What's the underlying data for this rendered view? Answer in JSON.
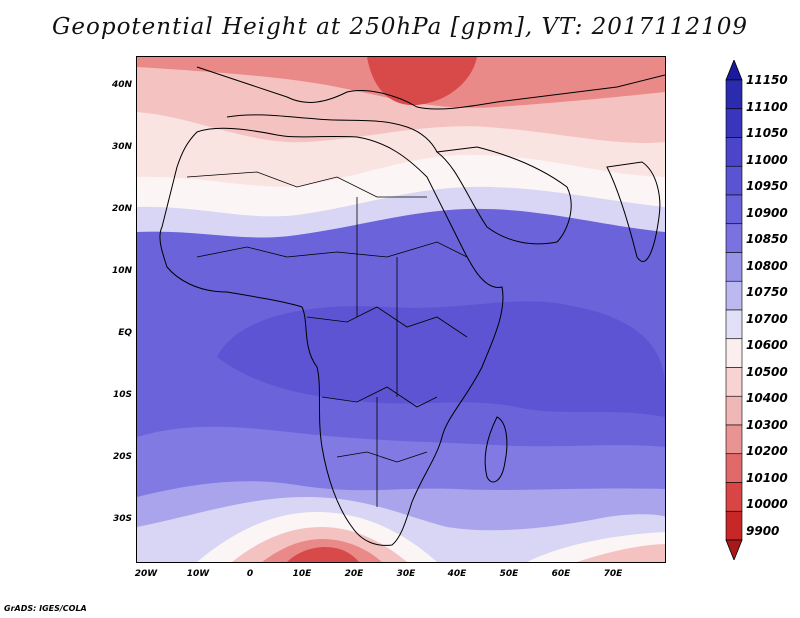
{
  "title": "Geopotential Height at 250hPa [gpm], VT: 2017112109",
  "footer": "GrADS: IGES/COLA",
  "lat_labels": [
    "40N",
    "30N",
    "20N",
    "10N",
    "EQ",
    "10S",
    "20S",
    "30S"
  ],
  "lon_labels": [
    "20W",
    "10W",
    "0",
    "10E",
    "20E",
    "30E",
    "40E",
    "50E",
    "60E",
    "70E"
  ],
  "colorbar": {
    "labels": [
      "11150",
      "11100",
      "11050",
      "11000",
      "10950",
      "10900",
      "10850",
      "10800",
      "10750",
      "10700",
      "10600",
      "10500",
      "10400",
      "10300",
      "10200",
      "10100",
      "10000",
      "9900"
    ],
    "colors": [
      "#1a1a9c",
      "#2b2bb0",
      "#3a35bd",
      "#4a45c9",
      "#5a53d3",
      "#6a62da",
      "#7a72e0",
      "#9a94e8",
      "#bcb8f0",
      "#e2e0f8",
      "#fbeeee",
      "#f7d3d3",
      "#f1b7b6",
      "#e99392",
      "#e06a69",
      "#d94545",
      "#c72727",
      "#a81a1a"
    ]
  },
  "map": {
    "extent": {
      "lon_min": -22,
      "lon_max": 80,
      "lat_min": -37,
      "lat_max": 45
    },
    "highs": [
      "north-east",
      "south-atlantic",
      "south-indian"
    ],
    "field_colors": {
      "deep_red": "#d84a4a",
      "red": "#e98a88",
      "pink": "#f4c3c1",
      "light_pink": "#fae4e2",
      "white": "#fbf5f5",
      "lavender": "#d8d6f4",
      "light_blue": "#a9a4ec",
      "blue": "#827ae3",
      "mid_blue": "#6b63da",
      "dark_blue": "#5c54d2"
    }
  }
}
